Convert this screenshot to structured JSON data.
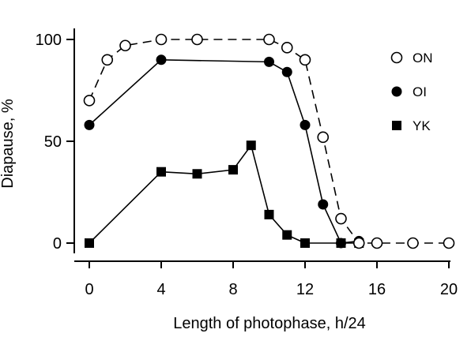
{
  "chart_data": {
    "type": "line",
    "xlabel": "Length of photophase, h/24",
    "ylabel": "Diapause, %",
    "xlim": [
      0,
      20
    ],
    "ylim": [
      0,
      100
    ],
    "x_ticks": [
      "0",
      "4",
      "8",
      "12",
      "16",
      "20"
    ],
    "y_ticks": [
      "0",
      "50",
      "100"
    ],
    "grid": false,
    "legend_position": "right",
    "series": [
      {
        "name": "ON",
        "marker": "open-circle",
        "line": "dashed",
        "points": [
          [
            0,
            70
          ],
          [
            1,
            90
          ],
          [
            2,
            97
          ],
          [
            4,
            100
          ],
          [
            6,
            100
          ],
          [
            10,
            100
          ],
          [
            11,
            96
          ],
          [
            12,
            90
          ],
          [
            13,
            52
          ],
          [
            14,
            12
          ],
          [
            15,
            0
          ],
          [
            16,
            0
          ],
          [
            18,
            0
          ],
          [
            20,
            0
          ]
        ]
      },
      {
        "name": "OI",
        "marker": "filled-circle",
        "line": "solid",
        "points": [
          [
            0,
            58
          ],
          [
            4,
            90
          ],
          [
            10,
            89
          ],
          [
            11,
            84
          ],
          [
            12,
            58
          ],
          [
            13,
            19
          ],
          [
            14,
            0
          ],
          [
            15,
            1
          ]
        ]
      },
      {
        "name": "YK",
        "marker": "filled-square",
        "line": "solid",
        "points": [
          [
            0,
            0
          ],
          [
            4,
            35
          ],
          [
            6,
            34
          ],
          [
            8,
            36
          ],
          [
            9,
            48
          ],
          [
            10,
            14
          ],
          [
            11,
            4
          ],
          [
            12,
            0
          ],
          [
            14,
            0
          ],
          [
            15,
            0
          ]
        ]
      }
    ]
  }
}
